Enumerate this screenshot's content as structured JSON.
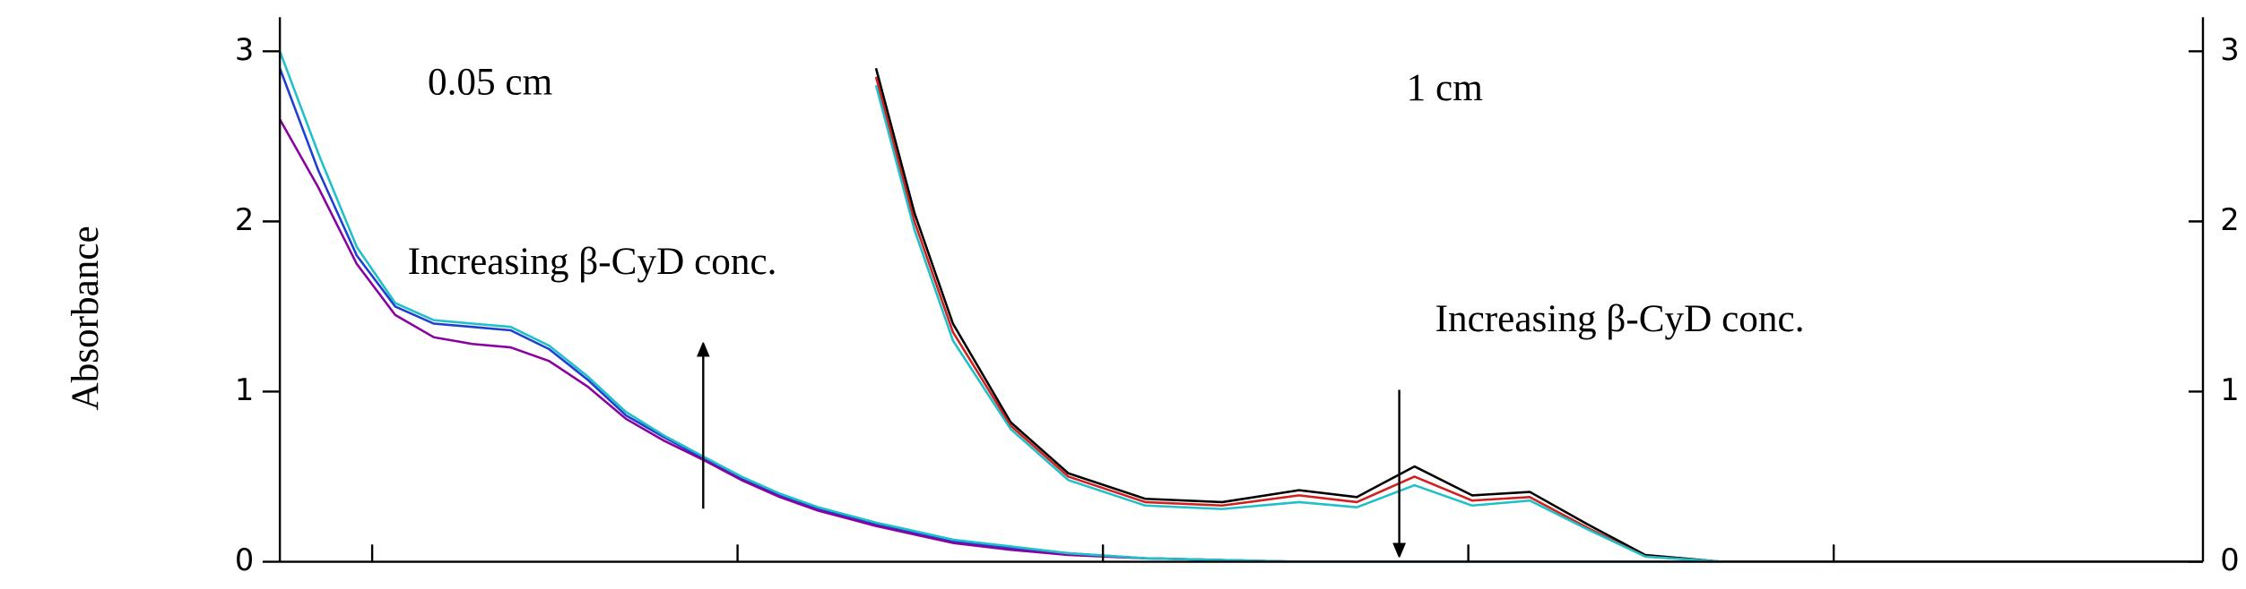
{
  "chart_data": {
    "type": "line",
    "ylabel": "Absorbance",
    "annotations": [
      "0.05 cm",
      "1 cm",
      "Increasing β-CyD conc.",
      "Increasing β-CyD conc."
    ],
    "x": [
      0,
      2,
      4,
      6,
      8,
      10,
      12,
      14,
      16,
      18,
      20,
      22,
      24,
      26,
      28,
      30,
      31,
      33,
      35,
      38,
      41,
      45,
      49,
      53,
      56,
      59,
      62,
      65,
      68,
      71,
      75,
      80,
      90,
      100
    ],
    "xlim": [
      0,
      100
    ],
    "xticks": [
      4.8,
      23.8,
      42.8,
      61.8,
      80.8
    ],
    "ylim": [
      0,
      3.2
    ],
    "yticks": [
      0,
      1,
      2,
      3
    ],
    "y2lim": [
      0,
      3.2
    ],
    "y2ticks": [
      0,
      1,
      2,
      3
    ],
    "grid": false,
    "series": [
      {
        "color": "#1f3fd0",
        "values": [
          2.9,
          2.3,
          1.8,
          1.5,
          1.4,
          1.38,
          1.36,
          1.25,
          1.07,
          0.86,
          0.73,
          0.61,
          0.49,
          0.39,
          0.31,
          0.25,
          0.22,
          0.17,
          0.12,
          0.08,
          0.05,
          0.02,
          0.01,
          0,
          0,
          0,
          0,
          0,
          0,
          0,
          0,
          0,
          0,
          0
        ]
      },
      {
        "color": "#8a00a0",
        "values": [
          2.6,
          2.2,
          1.75,
          1.45,
          1.32,
          1.28,
          1.26,
          1.18,
          1.03,
          0.84,
          0.71,
          0.6,
          0.48,
          0.38,
          0.3,
          0.24,
          0.21,
          0.16,
          0.11,
          0.07,
          0.04,
          0.02,
          0.01,
          0,
          0,
          0,
          0,
          0,
          0,
          0,
          0,
          0,
          0,
          0
        ]
      },
      {
        "color": "#20c0c8",
        "values": [
          3.0,
          2.4,
          1.85,
          1.52,
          1.42,
          1.4,
          1.38,
          1.27,
          1.09,
          0.88,
          0.74,
          0.62,
          0.5,
          0.4,
          0.32,
          0.26,
          0.23,
          0.18,
          0.13,
          0.09,
          0.05,
          0.02,
          0.01,
          0,
          0,
          0,
          0,
          0,
          0,
          0,
          0,
          0,
          0,
          0
        ]
      },
      {
        "color": "#000000",
        "values": [
          null,
          null,
          null,
          null,
          null,
          null,
          null,
          null,
          null,
          null,
          null,
          null,
          null,
          null,
          null,
          null,
          2.9,
          2.05,
          1.4,
          0.82,
          0.52,
          0.37,
          0.35,
          0.42,
          0.38,
          0.56,
          0.39,
          0.41,
          0.22,
          0.04,
          0,
          0,
          0,
          0
        ]
      },
      {
        "color": "#d02020",
        "values": [
          null,
          null,
          null,
          null,
          null,
          null,
          null,
          null,
          null,
          null,
          null,
          null,
          null,
          null,
          null,
          null,
          2.85,
          2.0,
          1.35,
          0.8,
          0.5,
          0.35,
          0.33,
          0.39,
          0.35,
          0.5,
          0.36,
          0.38,
          0.2,
          0.03,
          0,
          0,
          0,
          0
        ]
      },
      {
        "color": "#20c0c8",
        "values": [
          null,
          null,
          null,
          null,
          null,
          null,
          null,
          null,
          null,
          null,
          null,
          null,
          null,
          null,
          null,
          null,
          2.8,
          1.95,
          1.3,
          0.78,
          0.48,
          0.33,
          0.31,
          0.35,
          0.32,
          0.45,
          0.33,
          0.36,
          0.19,
          0.03,
          0,
          0,
          0,
          0
        ]
      }
    ]
  }
}
